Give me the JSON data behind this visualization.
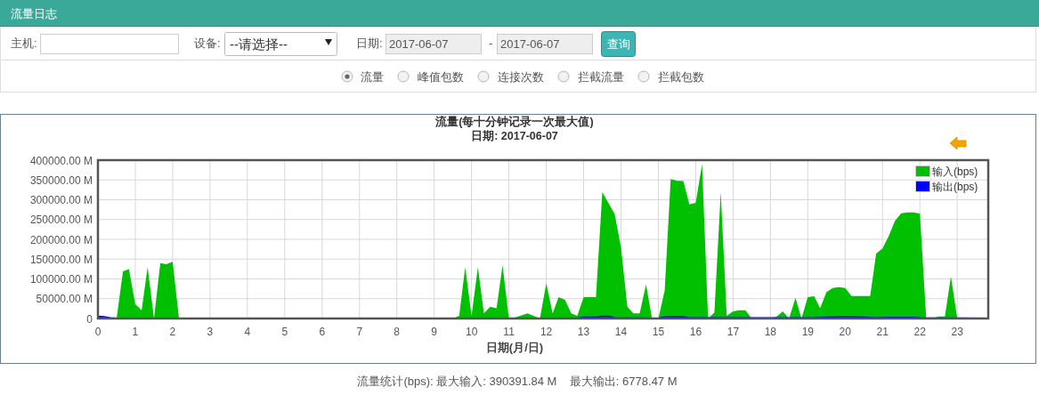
{
  "chart_data": {
    "type": "area",
    "title": "流量(每十分钟记录一次最大值)",
    "subtitle": "日期: 2017-06-07",
    "xlabel": "日期(月/日)",
    "xlim": [
      0,
      23.83
    ],
    "xticks": [
      0,
      1,
      2,
      3,
      4,
      5,
      6,
      7,
      8,
      9,
      10,
      11,
      12,
      13,
      14,
      15,
      16,
      17,
      18,
      19,
      20,
      21,
      22,
      23
    ],
    "ylim": [
      0,
      400000
    ],
    "yticks": [
      0,
      {
        "value": 50000,
        "label": "50000.00 M"
      },
      {
        "value": 100000,
        "label": "100000.00 M"
      },
      {
        "value": 150000,
        "label": "150000.00 M"
      },
      {
        "value": 200000,
        "label": "200000.00 M"
      },
      {
        "value": 250000,
        "label": "250000.00 M"
      },
      {
        "value": 300000,
        "label": "300000.00 M"
      },
      {
        "value": 350000,
        "label": "350000.00 M"
      },
      {
        "value": 400000,
        "label": "400000.00 M"
      }
    ],
    "grid": true,
    "legend": "top right",
    "series": [
      {
        "name": "输入(bps)",
        "color": "#00c000",
        "x": [
          0,
          0.17,
          0.33,
          0.5,
          0.67,
          0.83,
          1.0,
          1.17,
          1.33,
          1.5,
          1.67,
          1.83,
          2.0,
          2.17,
          9.5,
          9.67,
          9.83,
          10.0,
          10.17,
          10.33,
          10.5,
          10.67,
          10.83,
          11.0,
          11.17,
          11.5,
          11.83,
          12.0,
          12.17,
          12.33,
          12.5,
          12.67,
          12.83,
          13.0,
          13.33,
          13.5,
          13.83,
          14.0,
          14.17,
          14.33,
          14.5,
          14.67,
          14.83,
          15.0,
          15.17,
          15.33,
          15.5,
          15.67,
          15.83,
          16.0,
          16.17,
          16.33,
          16.5,
          16.67,
          16.83,
          17.0,
          17.17,
          17.33,
          17.5,
          18.0,
          18.17,
          18.33,
          18.5,
          18.67,
          18.83,
          19.0,
          19.17,
          19.33,
          19.5,
          19.67,
          19.83,
          20.0,
          20.17,
          20.67,
          20.83,
          21.0,
          21.17,
          21.33,
          21.5,
          21.67,
          21.83,
          22.0,
          22.17,
          22.33,
          22.5,
          22.67,
          22.83,
          23.0,
          23.83
        ],
        "values": [
          5000,
          3000,
          0,
          0,
          119000,
          125000,
          36000,
          21000,
          130000,
          0,
          140000,
          137000,
          143000,
          0,
          0,
          7000,
          130000,
          7000,
          130000,
          13000,
          30000,
          26000,
          134000,
          0,
          3000,
          13000,
          0,
          89000,
          13000,
          54000,
          47000,
          13000,
          7000,
          54000,
          54000,
          319000,
          264000,
          180000,
          30000,
          13000,
          13000,
          86000,
          0,
          0,
          71000,
          352000,
          348000,
          347000,
          288000,
          292000,
          390000,
          0,
          15000,
          319000,
          7000,
          18000,
          21000,
          21000,
          0,
          0,
          5000,
          18000,
          0,
          52000,
          0,
          54000,
          56000,
          26000,
          67000,
          77000,
          79000,
          77000,
          57000,
          57000,
          164000,
          177000,
          209000,
          246000,
          266000,
          268000,
          268000,
          265000,
          0,
          0,
          5000,
          5000,
          106000,
          0,
          0
        ]
      },
      {
        "name": "输出(bps)",
        "color": "#0000ff",
        "x": [
          0,
          0.17,
          0.33,
          0.5,
          12.83,
          13.0,
          13.33,
          13.5,
          13.67,
          13.83,
          15.0,
          15.17,
          15.67,
          15.83,
          19.17,
          19.5,
          20.0,
          20.5,
          20.83,
          21.17,
          21.83,
          22.0,
          23.83
        ],
        "values": [
          5000,
          4000,
          1000,
          0,
          0,
          3000,
          3000,
          5000,
          5000,
          1000,
          0,
          4000,
          4000,
          1000,
          1000,
          3000,
          4000,
          3000,
          1000,
          2000,
          2000,
          1000,
          0
        ]
      }
    ],
    "annotations": [
      "流量日志",
      "主机:",
      "设备:",
      "--请选择--",
      "日期:",
      "2017-06-07",
      "-",
      "2017-06-07",
      "查询",
      "流量",
      "峰值包数",
      "连接次数",
      "拦截流量",
      "拦截包数",
      "流量统计(bps): 最大输入: 390391.84 M    最大输出: 6778.47 M"
    ]
  }
}
